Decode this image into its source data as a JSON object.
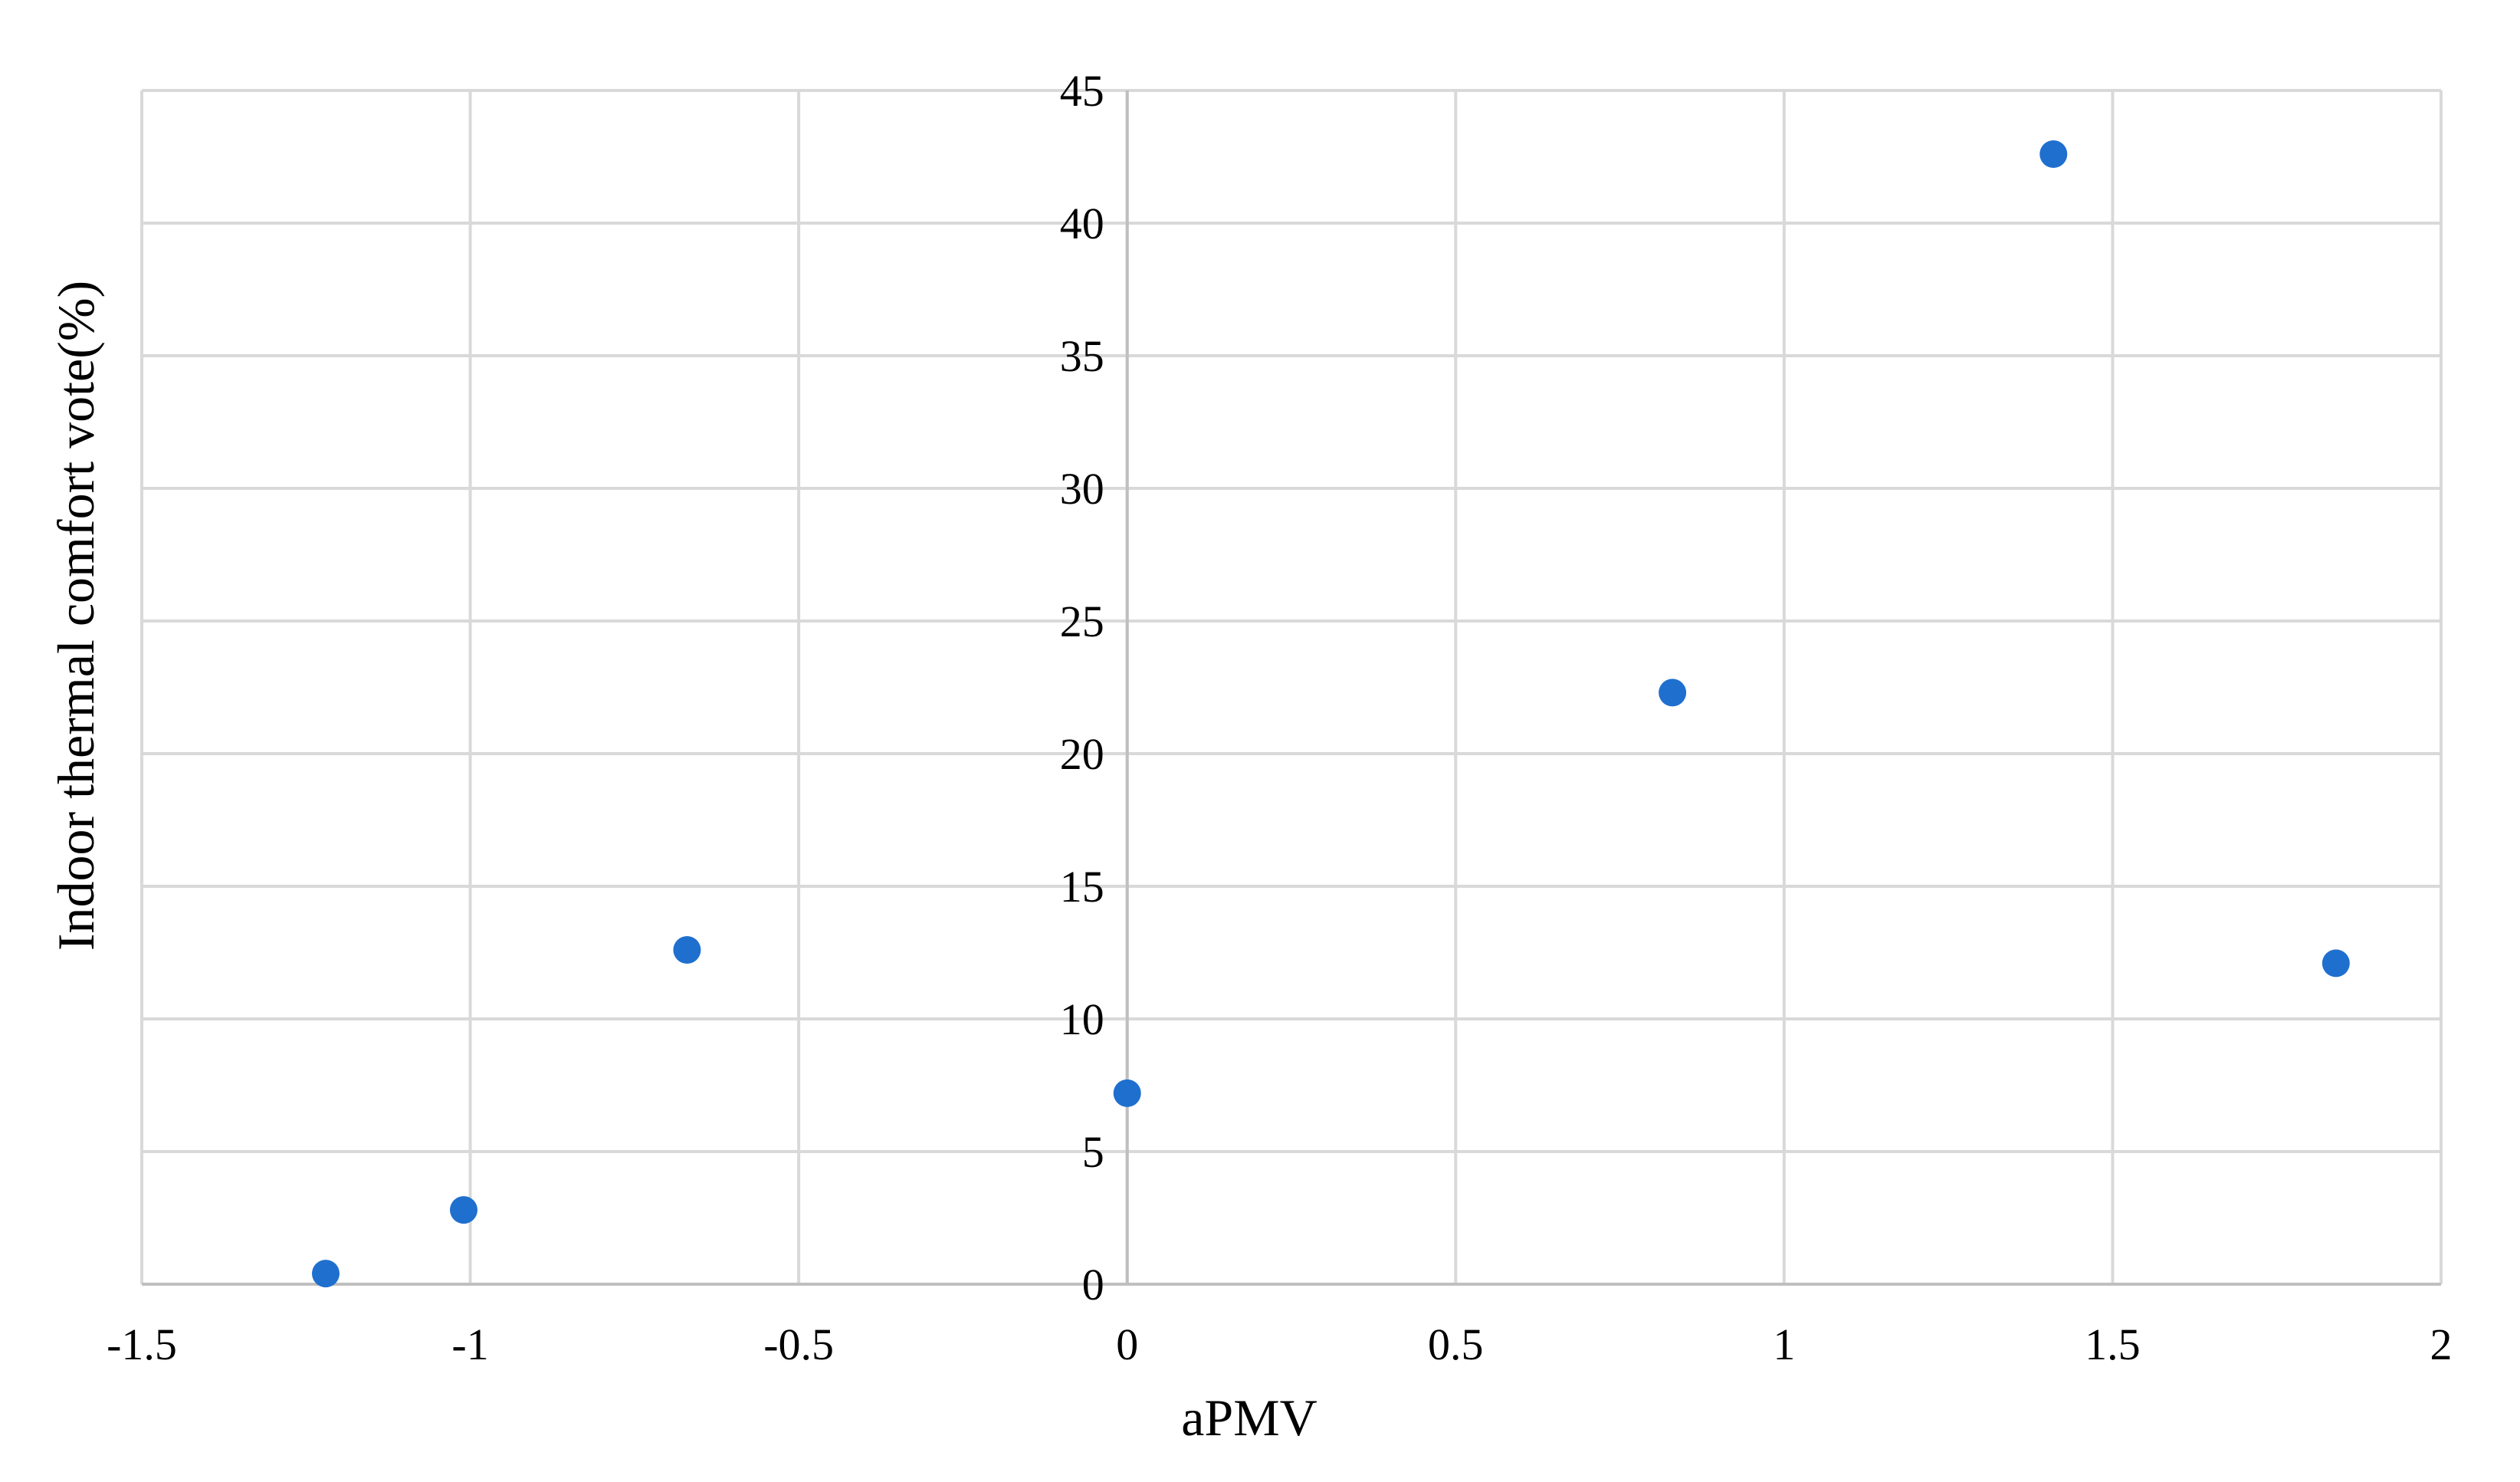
{
  "chart_data": {
    "type": "scatter",
    "title": "",
    "xlabel": "aPMV",
    "ylabel": "Indoor thermal comfort vote(%)",
    "xlim": [
      -1.5,
      2
    ],
    "ylim": [
      0,
      45
    ],
    "x_ticks": [
      -1.5,
      -1,
      -0.5,
      0,
      0.5,
      1,
      1.5,
      2
    ],
    "y_ticks": [
      0,
      5,
      10,
      15,
      20,
      25,
      30,
      35,
      40,
      45
    ],
    "x_tick_labels": [
      "-1.5",
      "-1",
      "-0.5",
      "0",
      "0.5",
      "1",
      "1.5",
      "2"
    ],
    "y_tick_labels": [
      "0",
      "5",
      "10",
      "15",
      "20",
      "25",
      "30",
      "35",
      "40",
      "45"
    ],
    "grid": true,
    "legend": "none",
    "series": [
      {
        "color": "#1f6fcf",
        "points": [
          {
            "x": -1.22,
            "y": 0.4
          },
          {
            "x": -1.01,
            "y": 2.8
          },
          {
            "x": -0.67,
            "y": 12.6
          },
          {
            "x": 0.0,
            "y": 7.2
          },
          {
            "x": 0.83,
            "y": 22.3
          },
          {
            "x": 1.41,
            "y": 42.6
          },
          {
            "x": 1.84,
            "y": 12.1
          }
        ]
      }
    ]
  }
}
